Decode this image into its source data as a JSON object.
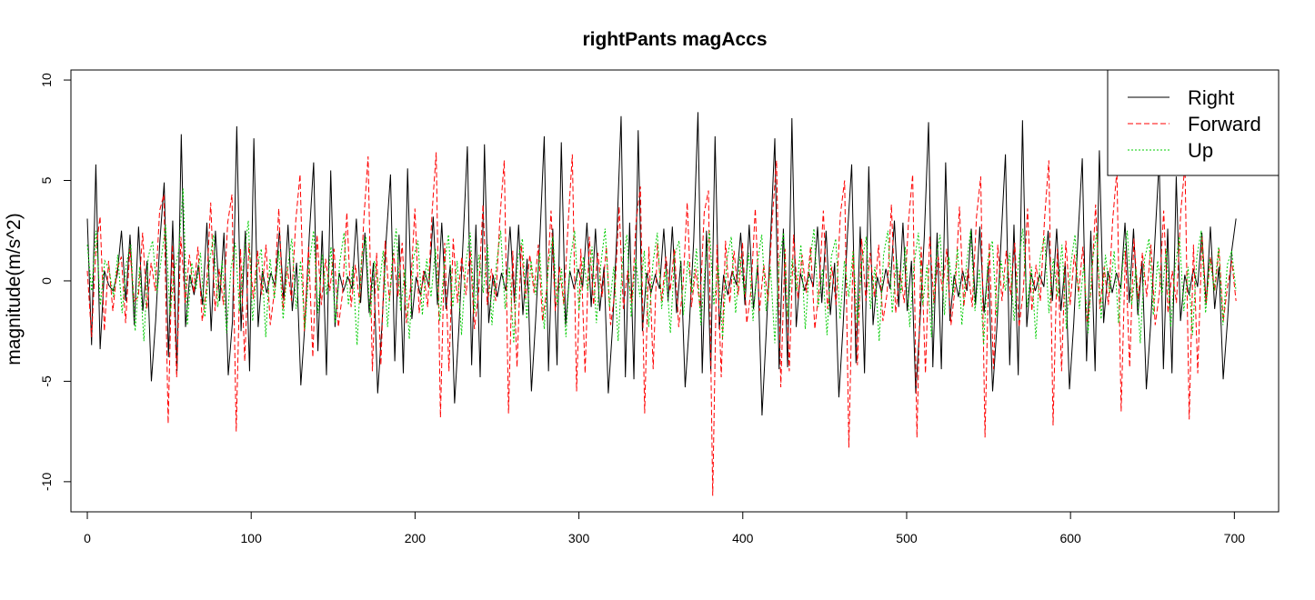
{
  "chart_data": {
    "type": "line",
    "title": "rightPants magAccs",
    "xlabel": "",
    "ylabel": "magnitude(m/s^2)",
    "xlim": [
      -10,
      727
    ],
    "ylim": [
      -11.5,
      10.5
    ],
    "x_ticks": [
      0,
      100,
      200,
      300,
      400,
      500,
      600,
      700
    ],
    "y_ticks": [
      -10,
      -5,
      0,
      5,
      10
    ],
    "grid": false,
    "legend_position": "top-right",
    "x_start": 0,
    "x_end": 701,
    "series": [
      {
        "name": "Right",
        "color": "#000000",
        "dash": "solid",
        "values": [
          3.1,
          -3.2,
          5.8,
          -3.4,
          0.5,
          -0.2,
          -0.5,
          0.3,
          2.5,
          -1.0,
          2.3,
          -2.2,
          2.7,
          -1.5,
          1.0,
          -5.0,
          -2.0,
          2.0,
          4.9,
          -3.8,
          3.0,
          -4.5,
          7.3,
          -2.3,
          0.3,
          -0.7,
          0.8,
          -1.2,
          2.9,
          -2.5,
          2.5,
          -1.0,
          2.4,
          -4.7,
          -2.0,
          7.7,
          -2.5,
          2.5,
          -4.5,
          7.1,
          -2.3,
          0.5,
          -0.6,
          0.4,
          -0.3,
          2.5,
          -1.0,
          2.8,
          -1.5,
          0.9,
          -5.2,
          -2.0,
          2.3,
          5.9,
          -3.5,
          2.5,
          -4.7,
          5.5,
          -2.3,
          0.4,
          -0.5,
          0.2,
          -0.4,
          3.1,
          -1.1,
          2.4,
          -1.6,
          0.9,
          -5.6,
          -2.2,
          2.1,
          5.3,
          -4.0,
          2.3,
          -4.6,
          5.6,
          -1.9,
          0.2,
          -0.7,
          0.5,
          -0.3,
          3.2,
          -1.2,
          2.9,
          -1.4,
          0.8,
          -6.1,
          -2.4,
          2.0,
          6.7,
          -4.2,
          2.8,
          -4.8,
          6.8,
          -2.1,
          0.3,
          -0.8,
          0.4,
          -0.5,
          2.7,
          -1.1,
          2.8,
          -1.7,
          1.1,
          -5.5,
          -1.9,
          2.2,
          7.2,
          -4.5,
          2.6,
          -4.2,
          6.9,
          -2.2,
          0.5,
          -0.4,
          0.6,
          -0.3,
          2.9,
          -1.3,
          2.6,
          -1.5,
          0.7,
          -5.6,
          -2.3,
          2.3,
          8.2,
          -4.8,
          2.9,
          -4.9,
          7.5,
          -2.5,
          0.4,
          -0.6,
          0.3,
          -0.4,
          2.6,
          -1.0,
          2.7,
          -1.6,
          1.0,
          -5.3,
          -2.1,
          2.0,
          8.4,
          -4.6,
          2.5,
          -4.5,
          7.2,
          -2.4,
          0.3,
          -0.7,
          0.5,
          -0.2,
          2.4,
          -1.2,
          2.8,
          -1.4,
          0.8,
          -6.7,
          -2.5,
          2.1,
          7.1,
          -4.4,
          2.6,
          -4.3,
          8.1,
          -2.3,
          0.4,
          -0.5,
          0.4,
          -0.3,
          2.7,
          -1.1,
          2.5,
          -1.7,
          0.9,
          -5.8,
          -2.2,
          2.3,
          5.8,
          -4.1,
          2.7,
          -4.6,
          5.7,
          -2.2,
          0.2,
          -0.6,
          0.6,
          -0.4,
          3.0,
          -1.3,
          2.9,
          -1.5,
          1.0,
          -5.6,
          -2.0,
          2.2,
          7.9,
          -4.3,
          2.4,
          -4.4,
          5.9,
          -2.0,
          0.3,
          -0.8,
          0.5,
          -0.5,
          2.6,
          -1.2,
          2.7,
          -1.6,
          0.8,
          -5.5,
          -2.3,
          2.1,
          6.3,
          -4.2,
          2.8,
          -4.7,
          8.0,
          -2.3,
          0.4,
          -0.5,
          0.3,
          -0.3,
          2.5,
          -1.0,
          2.6,
          -1.5,
          0.9,
          -5.4,
          -2.1,
          2.2,
          6.1,
          -4.0,
          2.5,
          -4.5,
          6.5,
          -2.1,
          0.5,
          -0.6,
          0.4,
          -0.4,
          2.9,
          -1.1,
          2.6,
          -1.7,
          1.0,
          -5.4,
          -2.2,
          2.0,
          6.0,
          -4.4,
          2.6,
          -4.6,
          5.2,
          -2.0,
          0.3,
          -0.7,
          0.6,
          -0.3,
          2.4,
          -1.2,
          2.7,
          -1.4,
          0.7,
          -4.9,
          -2.0,
          1.5,
          3.1
        ]
      },
      {
        "name": "Forward",
        "color": "#ff0000",
        "dash": "6,3",
        "values": [
          0.5,
          -2.8,
          1.5,
          3.2,
          -2.5,
          1.0,
          -1.5,
          0.6,
          1.2,
          -2.1,
          1.6,
          -1.0,
          -0.8,
          2.4,
          -1.4,
          0.9,
          -0.5,
          3.5,
          4.3,
          -7.1,
          1.8,
          -4.8,
          2.2,
          -1.1,
          1.3,
          -0.6,
          1.7,
          -2.0,
          -0.4,
          3.9,
          -1.5,
          0.6,
          -1.2,
          2.9,
          4.3,
          -7.5,
          1.6,
          -4.0,
          1.9,
          -0.9,
          1.5,
          -0.7,
          1.8,
          -2.2,
          -0.5,
          3.6,
          -1.4,
          0.7,
          -1.0,
          3.0,
          5.3,
          -2.5,
          1.7,
          -3.8,
          2.3,
          -1.2,
          1.1,
          -0.5,
          1.6,
          -2.3,
          -0.6,
          3.4,
          -1.3,
          0.8,
          -1.1,
          3.1,
          6.2,
          -4.5,
          1.4,
          -4.2,
          2.0,
          -1.0,
          1.4,
          -0.8,
          1.9,
          -2.1,
          -0.3,
          3.6,
          -1.6,
          0.5,
          -1.3,
          3.3,
          6.4,
          -6.8,
          1.9,
          -4.5,
          2.1,
          -1.1,
          1.2,
          -0.7,
          1.5,
          -2.4,
          -0.5,
          3.8,
          -1.2,
          0.6,
          -1.0,
          3.2,
          6.0,
          -6.6,
          1.5,
          -4.3,
          1.8,
          -0.9,
          1.3,
          -0.6,
          1.8,
          -2.0,
          -0.4,
          3.5,
          -1.5,
          0.7,
          -1.2,
          2.8,
          6.3,
          -5.5,
          1.6,
          -4.6,
          2.2,
          -1.2,
          1.4,
          -0.8,
          1.7,
          -2.2,
          -0.6,
          3.7,
          -1.4,
          0.5,
          -1.1,
          3.0,
          4.7,
          -6.6,
          1.7,
          -4.4,
          1.9,
          -1.0,
          1.2,
          -0.5,
          1.6,
          -2.3,
          -0.3,
          3.9,
          -1.3,
          0.6,
          -1.3,
          3.4,
          4.5,
          -10.7,
          1.8,
          -4.8,
          2.0,
          -1.1,
          1.5,
          -0.7,
          1.9,
          -2.1,
          -0.5,
          3.6,
          -1.5,
          0.8,
          -1.0,
          3.1,
          6.0,
          -5.3,
          1.6,
          -4.5,
          2.3,
          -0.9,
          1.3,
          -0.6,
          1.7,
          -2.4,
          -0.4,
          3.5,
          -1.4,
          0.7,
          -1.2,
          3.3,
          5.0,
          -8.3,
          1.5,
          -4.2,
          2.1,
          -1.0,
          1.4,
          -0.8,
          1.8,
          -2.0,
          -0.6,
          3.8,
          -1.6,
          0.5,
          -1.1,
          2.9,
          5.3,
          -7.8,
          1.7,
          -4.6,
          2.2,
          -1.1,
          1.2,
          -0.5,
          1.6,
          -2.2,
          -0.3,
          3.7,
          -1.3,
          0.6,
          -1.3,
          3.2,
          5.2,
          -7.8,
          1.9,
          -4.4,
          1.8,
          -1.0,
          1.5,
          -0.7,
          1.9,
          -2.3,
          -0.5,
          3.6,
          -1.5,
          0.8,
          -1.0,
          3.1,
          6.0,
          -7.2,
          1.6,
          -4.5,
          2.0,
          -1.2,
          1.3,
          -0.6,
          1.7,
          -2.1,
          -0.4,
          3.8,
          -1.4,
          0.7,
          -1.2,
          3.0,
          5.5,
          -6.5,
          1.5,
          -4.3,
          2.1,
          -0.9,
          1.4,
          -0.8,
          1.8,
          -2.2,
          -0.6,
          3.5,
          -1.6,
          0.5,
          -1.1,
          3.4,
          5.8,
          -6.9,
          1.8,
          -4.6,
          2.2,
          -1.1,
          1.2,
          -0.5,
          1.6,
          -2.0,
          -0.3,
          1.0,
          -1.0
        ]
      },
      {
        "name": "Up",
        "color": "#00cc00",
        "dash": "2,2",
        "values": [
          1.8,
          -0.5,
          2.5,
          -1.2,
          1.0,
          0.6,
          -0.8,
          1.3,
          -1.6,
          0.9,
          1.8,
          -2.5,
          0.7,
          -3.0,
          1.2,
          2.0,
          -0.6,
          1.1,
          2.8,
          -1.7,
          0.5,
          1.5,
          4.6,
          -2.2,
          0.9,
          -0.4,
          1.4,
          -1.8,
          0.8,
          2.3,
          -1.3,
          1.0,
          -2.6,
          0.6,
          1.9,
          -1.5,
          1.2,
          3.0,
          -2.0,
          0.7,
          1.6,
          -2.8,
          1.1,
          -0.9,
          1.5,
          -1.9,
          0.6,
          2.1,
          -1.4,
          1.0,
          -2.4,
          0.8,
          2.5,
          -1.6,
          1.3,
          -0.7,
          1.7,
          -2.1,
          0.9,
          2.4,
          -1.2,
          0.7,
          -3.2,
          1.1,
          2.2,
          -1.8,
          1.0,
          -0.5,
          1.5,
          -2.3,
          0.8,
          2.6,
          -1.5,
          0.6,
          -2.9,
          1.2,
          2.0,
          -1.7,
          1.1,
          -0.8,
          1.6,
          -2.0,
          0.7,
          2.3,
          -1.3,
          1.0,
          -2.7,
          0.9,
          2.4,
          -1.6,
          1.3,
          -0.6,
          1.8,
          -2.2,
          0.8,
          2.5,
          -1.4,
          0.7,
          -3.1,
          1.2,
          2.1,
          -1.9,
          1.0,
          -0.7,
          1.4,
          -2.4,
          0.9,
          2.2,
          -1.2,
          0.6,
          -2.8,
          1.1,
          2.5,
          -1.5,
          1.2,
          -0.5,
          1.7,
          -2.1,
          0.8,
          2.6,
          -1.3,
          0.7,
          -3.0,
          1.0,
          2.3,
          -1.8,
          1.1,
          -0.8,
          1.5,
          -2.3,
          0.9,
          2.4,
          -1.4,
          0.6,
          -2.6,
          1.3,
          2.0,
          -1.7,
          1.0,
          -0.6,
          1.6,
          -2.2,
          0.7,
          2.5,
          -1.2,
          0.8,
          -2.9,
          1.1,
          2.2,
          -1.6,
          1.2,
          -0.7,
          1.4,
          -2.0,
          0.9,
          2.3,
          -1.5,
          0.7,
          -3.1,
          1.0,
          2.4,
          -1.8,
          1.1,
          -0.5,
          1.8,
          -2.4,
          0.8,
          2.6,
          -1.3,
          0.6,
          -2.7,
          1.2,
          2.1,
          -1.9,
          1.0,
          -0.8,
          1.5,
          -2.1,
          0.9,
          2.2,
          -1.4,
          0.7,
          -3.0,
          1.3,
          2.5,
          -1.6,
          1.1,
          -0.6,
          1.7,
          -2.3,
          0.8,
          2.4,
          -1.2,
          0.8,
          -2.8,
          1.0,
          2.3,
          -1.7,
          1.2,
          -0.7,
          1.6,
          -2.2,
          0.7,
          2.5,
          -1.5,
          0.6,
          -3.2,
          1.1,
          2.0,
          -1.8,
          1.0,
          -0.5,
          1.4,
          -2.0,
          0.9,
          2.6,
          -1.3,
          0.7,
          -2.9,
          1.2,
          2.2,
          -1.6,
          1.1,
          -0.8,
          1.8,
          -2.4,
          0.8,
          2.3,
          -1.4,
          0.8,
          -2.6,
          1.0,
          2.4,
          -1.9,
          1.3,
          -0.6,
          1.5,
          -2.1,
          0.9,
          2.5,
          -1.2,
          0.6,
          -3.1,
          1.1,
          2.1,
          -1.7,
          1.0,
          -0.7,
          1.6,
          -2.3,
          0.7,
          2.2,
          -1.5,
          0.7,
          -2.7,
          1.2,
          2.5,
          -1.6,
          1.1,
          -0.5,
          1.7,
          -2.2,
          0.8,
          1.5,
          -0.5
        ]
      }
    ]
  }
}
